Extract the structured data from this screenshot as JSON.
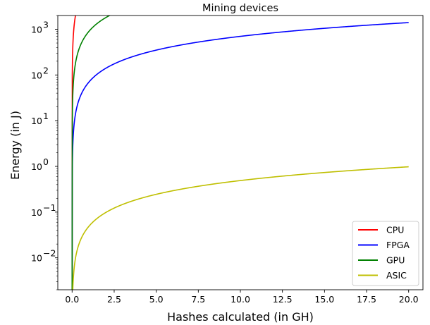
{
  "chart_data": {
    "type": "line",
    "title": "Mining devices",
    "xlabel": "Hashes calculated (in GH)",
    "ylabel": "Energy (in J)",
    "xlim": [
      -0.85,
      20.85
    ],
    "ylim": [
      0.002,
      2000
    ],
    "yscale": "log",
    "x_ticks": [
      "0.0",
      "2.5",
      "5.0",
      "7.5",
      "10.0",
      "12.5",
      "15.0",
      "17.5",
      "20.0"
    ],
    "x_tick_values": [
      0,
      2.5,
      5,
      7.5,
      10,
      12.5,
      15,
      17.5,
      20
    ],
    "y_ticks": [
      {
        "base": "10",
        "exp": "−2",
        "value": 0.01
      },
      {
        "base": "10",
        "exp": "−1",
        "value": 0.1
      },
      {
        "base": "10",
        "exp": "0",
        "value": 1
      },
      {
        "base": "10",
        "exp": "1",
        "value": 10
      },
      {
        "base": "10",
        "exp": "2",
        "value": 100
      },
      {
        "base": "10",
        "exp": "3",
        "value": 1000
      }
    ],
    "legend_position": "lower right",
    "series": [
      {
        "name": "CPU",
        "color": "#ff0000",
        "energy_per_gh": 10000
      },
      {
        "name": "FPGA",
        "color": "#0000ff",
        "energy_per_gh": 70
      },
      {
        "name": "GPU",
        "color": "#008000",
        "energy_per_gh": 900
      },
      {
        "name": "ASIC",
        "color": "#bfbf00",
        "energy_per_gh": 0.049
      }
    ]
  }
}
